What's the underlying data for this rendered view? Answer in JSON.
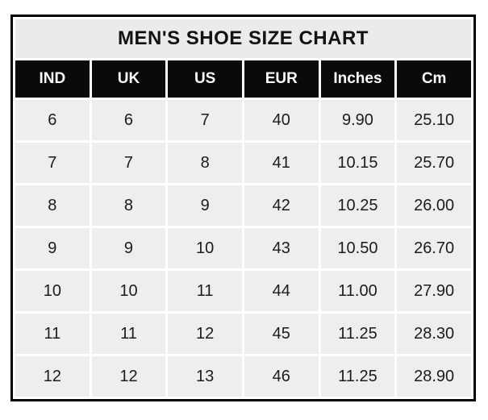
{
  "title": "MEN'S SHOE SIZE CHART",
  "colors": {
    "outer_border": "#000000",
    "title_bg": "#ebebeb",
    "header_bg": "#0a0a0a",
    "header_text": "#ffffff",
    "cell_bg": "#efeeee",
    "grid_gap": "#ffffff",
    "text": "#1c1c1c"
  },
  "table": {
    "headers": [
      "IND",
      "UK",
      "US",
      "EUR",
      "Inches",
      "Cm"
    ],
    "rows": [
      [
        "6",
        "6",
        "7",
        "40",
        "9.90",
        "25.10"
      ],
      [
        "7",
        "7",
        "8",
        "41",
        "10.15",
        "25.70"
      ],
      [
        "8",
        "8",
        "9",
        "42",
        "10.25",
        "26.00"
      ],
      [
        "9",
        "9",
        "10",
        "43",
        "10.50",
        "26.70"
      ],
      [
        "10",
        "10",
        "11",
        "44",
        "11.00",
        "27.90"
      ],
      [
        "11",
        "11",
        "12",
        "45",
        "11.25",
        "28.30"
      ],
      [
        "12",
        "12",
        "13",
        "46",
        "11.25",
        "28.90"
      ]
    ]
  },
  "chart_data": {
    "type": "table",
    "title": "MEN'S SHOE SIZE CHART",
    "columns": [
      "IND",
      "UK",
      "US",
      "EUR",
      "Inches",
      "Cm"
    ],
    "rows": [
      [
        6,
        6,
        7,
        40,
        9.9,
        25.1
      ],
      [
        7,
        7,
        8,
        41,
        10.15,
        25.7
      ],
      [
        8,
        8,
        9,
        42,
        10.25,
        26.0
      ],
      [
        9,
        9,
        10,
        43,
        10.5,
        26.7
      ],
      [
        10,
        10,
        11,
        44,
        11.0,
        27.9
      ],
      [
        11,
        11,
        12,
        45,
        11.25,
        28.3
      ],
      [
        12,
        12,
        13,
        46,
        11.25,
        28.9
      ]
    ]
  }
}
